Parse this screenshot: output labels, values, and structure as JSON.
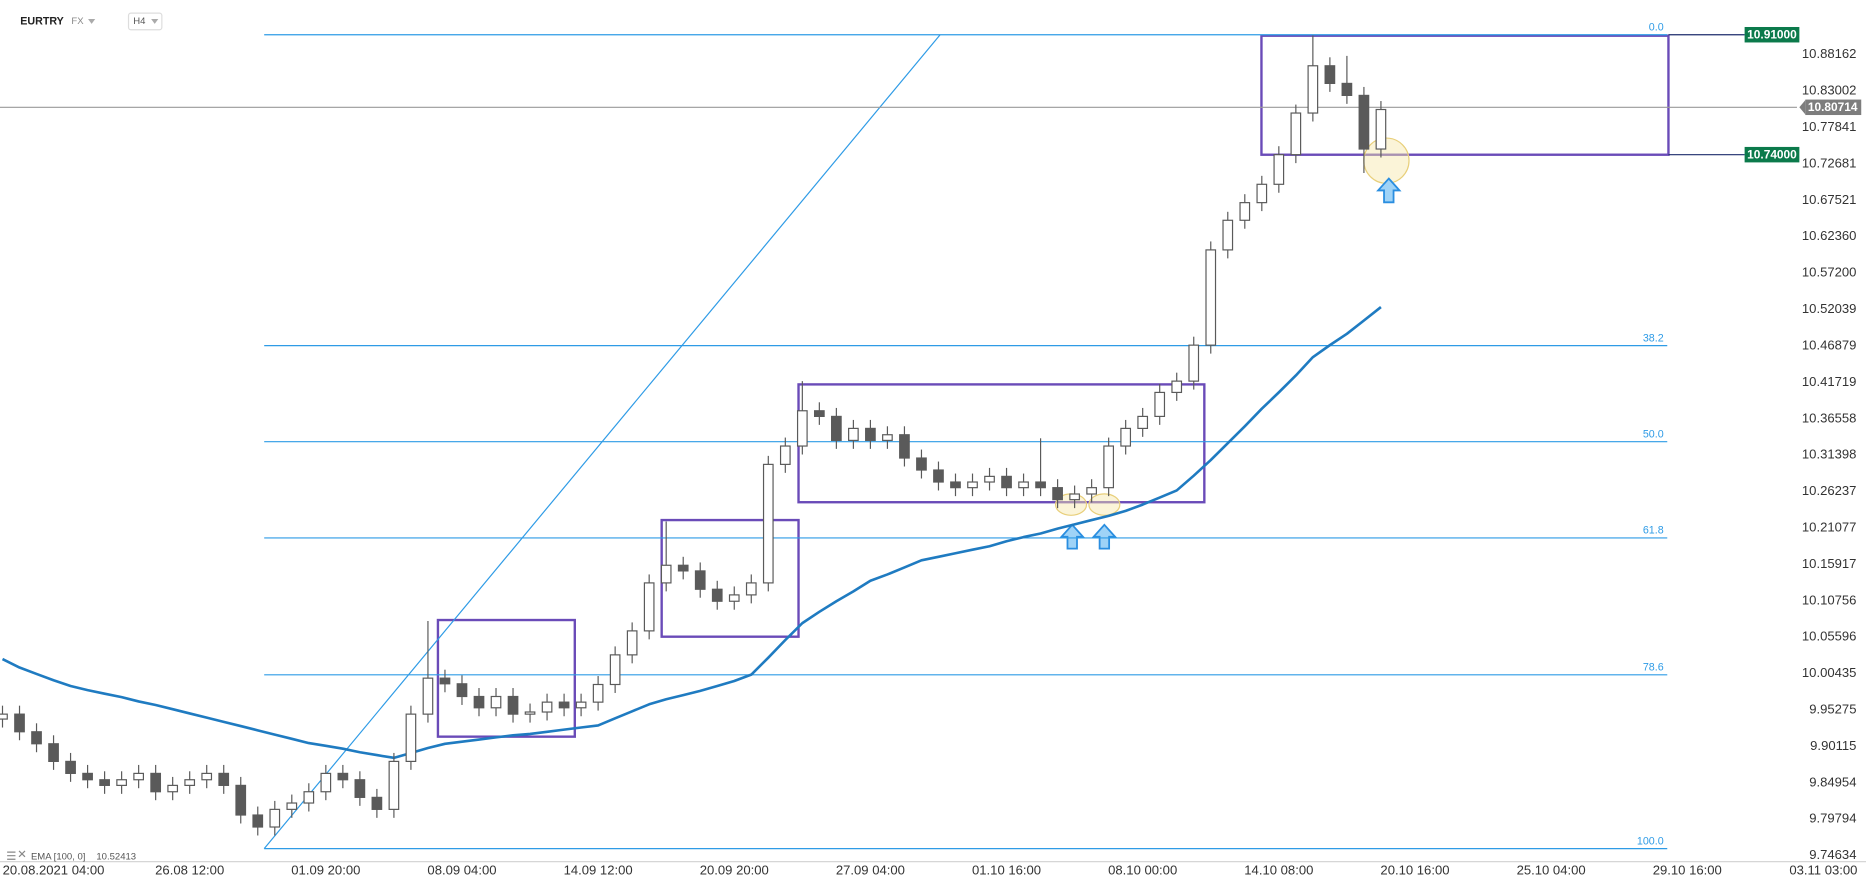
{
  "header": {
    "symbol": "EURTRY",
    "market": "FX",
    "interval": "H4"
  },
  "chart_data": {
    "type": "candlestick",
    "categories": [
      null,
      null,
      null,
      "20.08.2021 04:00",
      null,
      null,
      null,
      null,
      null,
      null,
      null,
      "26.08 12:00",
      null,
      null,
      null,
      null,
      null,
      null,
      null,
      "01.09 20:00",
      null,
      null,
      null,
      null,
      null,
      null,
      null,
      "08.09 04:00",
      null,
      null,
      null,
      null,
      null,
      null,
      null,
      "14.09 12:00",
      null,
      null,
      null,
      null,
      null,
      null,
      null,
      "20.09 20:00",
      null,
      null,
      null,
      null,
      null,
      null,
      null,
      "27.09 04:00",
      null,
      null,
      null,
      null,
      null,
      null,
      null,
      "01.10 16:00",
      null,
      null,
      null,
      null,
      null,
      null,
      null,
      "08.10 00:00",
      null,
      null,
      null,
      null,
      null,
      null,
      null,
      "14.10 08:00",
      null,
      null,
      null,
      null,
      null,
      null,
      null,
      "20.10 16:00",
      null,
      null,
      null,
      null,
      null,
      null,
      null,
      "25.10 04:00",
      null,
      null,
      null,
      null,
      null,
      null,
      null,
      "29.10 16:00",
      null,
      null,
      null,
      null,
      null,
      null,
      null,
      "03.11 03:00"
    ],
    "ohlc": [
      [
        9.94,
        9.959,
        9.928,
        9.947
      ],
      [
        9.947,
        9.959,
        9.91,
        9.922
      ],
      [
        9.922,
        9.934,
        9.893,
        9.905
      ],
      [
        9.905,
        9.917,
        9.868,
        9.88
      ],
      [
        9.88,
        9.892,
        9.851,
        9.863
      ],
      [
        9.863,
        9.875,
        9.842,
        9.854
      ],
      [
        9.854,
        9.866,
        9.834,
        9.846
      ],
      [
        9.846,
        9.866,
        9.834,
        9.854
      ],
      [
        9.854,
        9.875,
        9.842,
        9.863
      ],
      [
        9.863,
        9.875,
        9.825,
        9.837
      ],
      [
        9.837,
        9.858,
        9.825,
        9.846
      ],
      [
        9.846,
        9.866,
        9.834,
        9.854
      ],
      [
        9.854,
        9.875,
        9.842,
        9.863
      ],
      [
        9.863,
        9.875,
        9.834,
        9.846
      ],
      [
        9.846,
        9.858,
        9.792,
        9.804
      ],
      [
        9.804,
        9.816,
        9.775,
        9.787
      ],
      [
        9.787,
        9.824,
        9.775,
        9.812
      ],
      [
        9.812,
        9.833,
        9.8,
        9.821
      ],
      [
        9.821,
        9.849,
        9.809,
        9.837
      ],
      [
        9.837,
        9.875,
        9.825,
        9.863
      ],
      [
        9.863,
        9.875,
        9.842,
        9.854
      ],
      [
        9.854,
        9.866,
        9.817,
        9.829
      ],
      [
        9.829,
        9.841,
        9.8,
        9.812
      ],
      [
        9.812,
        9.892,
        9.8,
        9.88
      ],
      [
        9.88,
        9.959,
        9.868,
        9.947
      ],
      [
        9.947,
        10.079,
        9.935,
        9.998
      ],
      [
        9.998,
        10.01,
        9.978,
        9.99
      ],
      [
        9.99,
        10.002,
        9.96,
        9.972
      ],
      [
        9.972,
        9.984,
        9.944,
        9.956
      ],
      [
        9.956,
        9.984,
        9.944,
        9.972
      ],
      [
        9.972,
        9.984,
        9.935,
        9.947
      ],
      [
        9.947,
        9.962,
        9.935,
        9.95
      ],
      [
        9.95,
        9.976,
        9.938,
        9.964
      ],
      [
        9.964,
        9.976,
        9.944,
        9.956
      ],
      [
        9.956,
        9.976,
        9.944,
        9.964
      ],
      [
        9.964,
        10.001,
        9.952,
        9.989
      ],
      [
        9.989,
        10.043,
        9.977,
        10.031
      ],
      [
        10.031,
        10.077,
        10.019,
        10.065
      ],
      [
        10.065,
        10.145,
        10.053,
        10.133
      ],
      [
        10.133,
        10.22,
        10.121,
        10.158
      ],
      [
        10.158,
        10.17,
        10.138,
        10.15
      ],
      [
        10.15,
        10.162,
        10.112,
        10.124
      ],
      [
        10.124,
        10.136,
        10.095,
        10.107
      ],
      [
        10.107,
        10.128,
        10.095,
        10.116
      ],
      [
        10.116,
        10.145,
        10.104,
        10.133
      ],
      [
        10.133,
        10.313,
        10.121,
        10.301
      ],
      [
        10.301,
        10.339,
        10.289,
        10.327
      ],
      [
        10.327,
        10.419,
        10.315,
        10.377
      ],
      [
        10.377,
        10.389,
        10.357,
        10.369
      ],
      [
        10.369,
        10.381,
        10.323,
        10.335
      ],
      [
        10.335,
        10.364,
        10.323,
        10.352
      ],
      [
        10.352,
        10.364,
        10.323,
        10.335
      ],
      [
        10.335,
        10.355,
        10.323,
        10.343
      ],
      [
        10.343,
        10.355,
        10.298,
        10.31
      ],
      [
        10.31,
        10.322,
        10.281,
        10.293
      ],
      [
        10.293,
        10.305,
        10.264,
        10.276
      ],
      [
        10.276,
        10.288,
        10.256,
        10.268
      ],
      [
        10.268,
        10.288,
        10.256,
        10.276
      ],
      [
        10.276,
        10.296,
        10.264,
        10.284
      ],
      [
        10.284,
        10.296,
        10.256,
        10.268
      ],
      [
        10.268,
        10.288,
        10.256,
        10.276
      ],
      [
        10.276,
        10.338,
        10.256,
        10.268
      ],
      [
        10.268,
        10.28,
        10.239,
        10.251
      ],
      [
        10.251,
        10.271,
        10.239,
        10.259
      ],
      [
        10.259,
        10.28,
        10.247,
        10.268
      ],
      [
        10.268,
        10.339,
        10.256,
        10.327
      ],
      [
        10.327,
        10.364,
        10.315,
        10.352
      ],
      [
        10.352,
        10.381,
        10.34,
        10.369
      ],
      [
        10.369,
        10.415,
        10.357,
        10.403
      ],
      [
        10.403,
        10.431,
        10.391,
        10.419
      ],
      [
        10.419,
        10.482,
        10.407,
        10.47
      ],
      [
        10.47,
        10.617,
        10.458,
        10.605
      ],
      [
        10.605,
        10.659,
        10.593,
        10.647
      ],
      [
        10.647,
        10.684,
        10.635,
        10.672
      ],
      [
        10.672,
        10.71,
        10.66,
        10.698
      ],
      [
        10.698,
        10.752,
        10.686,
        10.74
      ],
      [
        10.74,
        10.811,
        10.728,
        10.799
      ],
      [
        10.799,
        10.909,
        10.787,
        10.866
      ],
      [
        10.866,
        10.878,
        10.829,
        10.841
      ],
      [
        10.841,
        10.88,
        10.812,
        10.824
      ],
      [
        10.824,
        10.836,
        10.714,
        10.748
      ],
      [
        10.748,
        10.816,
        10.736,
        10.804
      ],
      null,
      null,
      null,
      null,
      null,
      null,
      null,
      null,
      null,
      null,
      null,
      null,
      null,
      null,
      null,
      null,
      null,
      null,
      null,
      null,
      null,
      null,
      null,
      null,
      null,
      null
    ],
    "up_color": "#ffffff",
    "down_color": "#5a5a5a",
    "wick_color": "#5a5a5a",
    "ema": {
      "label": "EMA [100, 0]",
      "value": 10.52413,
      "color": "#1f7bc1",
      "values": [
        10.025,
        10.013,
        10.004,
        9.995,
        9.987,
        9.981,
        9.976,
        9.971,
        9.965,
        9.96,
        9.954,
        9.948,
        9.942,
        9.936,
        9.93,
        9.924,
        9.918,
        9.912,
        9.906,
        9.902,
        9.898,
        9.893,
        9.889,
        9.885,
        9.892,
        9.899,
        9.905,
        9.908,
        9.911,
        9.914,
        9.917,
        9.919,
        9.922,
        9.925,
        9.928,
        9.931,
        9.941,
        9.951,
        9.961,
        9.968,
        9.974,
        9.98,
        9.987,
        9.994,
        10.003,
        10.027,
        10.052,
        10.076,
        10.092,
        10.107,
        10.121,
        10.136,
        10.145,
        10.155,
        10.165,
        10.17,
        10.175,
        10.18,
        10.185,
        10.192,
        10.198,
        10.203,
        10.21,
        10.216,
        10.222,
        10.228,
        10.235,
        10.244,
        10.254,
        10.264,
        10.285,
        10.307,
        10.331,
        10.355,
        10.38,
        10.403,
        10.427,
        10.453,
        10.47,
        10.486,
        10.505,
        10.524,
        null,
        null,
        null,
        null,
        null,
        null,
        null,
        null,
        null,
        null,
        null,
        null,
        null,
        null,
        null,
        null,
        null,
        null,
        null,
        null,
        null,
        null,
        null,
        null,
        null,
        null
      ]
    },
    "ylim": [
      9.7194,
      10.9592
    ],
    "yticks": [
      10.88162,
      10.83002,
      10.77841,
      10.72681,
      10.67521,
      {
        "value": 10.6236,
        "label": "10.62360"
      },
      {
        "value": 10.572,
        "label": "10.57200"
      },
      10.52039,
      10.46879,
      10.41719,
      10.36558,
      10.31398,
      10.26237,
      10.21077,
      10.15917,
      10.10756,
      10.05596,
      10.00435,
      9.95275,
      9.90115,
      9.84954,
      9.79794,
      9.74634
    ],
    "price_tags": [
      {
        "value": 10.91,
        "label": "10.91000",
        "color": "#0b7a4b"
      },
      {
        "value": 10.80714,
        "label": "10.80714",
        "color": "#7d7d7d"
      },
      {
        "value": 10.74,
        "label": "10.74000",
        "color": "#0b7a4b"
      }
    ],
    "fibonacci": {
      "color": "#2e9be6",
      "levels": [
        {
          "label": "0.0",
          "price": 10.91
        },
        {
          "label": "38.2",
          "price": 10.4693
        },
        {
          "label": "50.0",
          "price": 10.3332
        },
        {
          "label": "61.8",
          "price": 10.1967
        },
        {
          "label": "78.6",
          "price": 10.0027
        },
        {
          "label": "100.0",
          "price": 9.7564
        }
      ]
    }
  }
}
